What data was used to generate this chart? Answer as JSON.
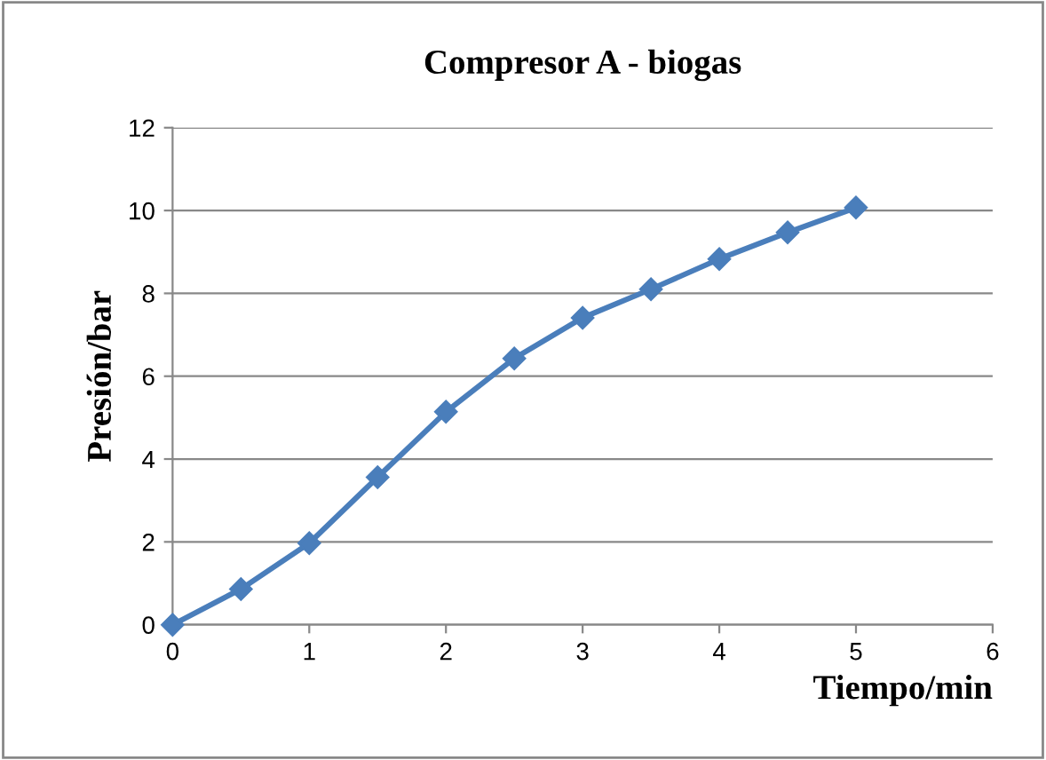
{
  "chart_data": {
    "type": "line",
    "title": "Compresor A - biogas",
    "xlabel": "Tiempo/min",
    "ylabel": "Presión/bar",
    "x": [
      0,
      0.5,
      1,
      1.5,
      2,
      2.5,
      3,
      3.5,
      4,
      4.5,
      5
    ],
    "series": [
      {
        "color": "#4a7ebb",
        "values": [
          0,
          0.86,
          1.97,
          3.56,
          5.14,
          6.43,
          7.41,
          8.1,
          8.83,
          9.47,
          10.07
        ]
      }
    ],
    "xlim": [
      0,
      6
    ],
    "xticks": [
      0,
      1,
      2,
      3,
      4,
      5,
      6
    ],
    "ylim": [
      0,
      12
    ],
    "yticks": [
      0,
      2,
      4,
      6,
      8,
      10,
      12
    ],
    "grid": "y",
    "marker": "diamond",
    "line_style": "solid",
    "legend": false
  }
}
